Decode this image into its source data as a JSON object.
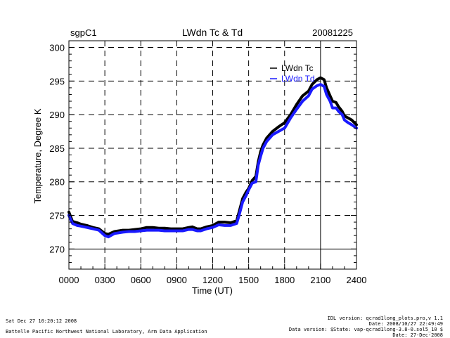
{
  "chart_data": {
    "type": "line",
    "title": "LWdn Tc & Td",
    "site": "sgpC1",
    "date": "20081225",
    "xlabel": "Time (UT)",
    "ylabel": "Temperature, Degree K",
    "xlim": [
      0,
      24
    ],
    "ylim": [
      267,
      301
    ],
    "xticks": [
      0,
      3,
      6,
      9,
      12,
      15,
      18,
      21,
      24
    ],
    "xtick_labels": [
      "0000",
      "0300",
      "0600",
      "0900",
      "1200",
      "1500",
      "1800",
      "2100",
      "2400"
    ],
    "yticks": [
      270,
      275,
      280,
      285,
      290,
      295,
      300
    ],
    "ytick_labels": [
      "270",
      "275",
      "280",
      "285",
      "290",
      "295",
      "300"
    ],
    "grid": true,
    "legend_position": "top-right",
    "series": [
      {
        "name": "LWdn Tc",
        "color": "#000000",
        "x": [
          0,
          0.3,
          0.7,
          1,
          1.5,
          2,
          2.5,
          3,
          3.3,
          3.8,
          4.5,
          5,
          5.5,
          6,
          6.5,
          7,
          7.5,
          8,
          8.5,
          9,
          9.5,
          10,
          10.3,
          10.7,
          11,
          11.5,
          12,
          12.5,
          13,
          13.5,
          14,
          14.2,
          14.5,
          14.8,
          15,
          15.3,
          15.6,
          15.8,
          16,
          16.2,
          16.5,
          17,
          17.5,
          18,
          18.5,
          19,
          19.5,
          20,
          20.3,
          20.7,
          21,
          21.3,
          21.5,
          21.8,
          22,
          22.3,
          22.5,
          22.8,
          23,
          23.3,
          23.6,
          24
        ],
        "values": [
          275.5,
          274.1,
          273.9,
          273.7,
          273.5,
          273.2,
          273.0,
          272.3,
          272.2,
          272.6,
          272.8,
          272.8,
          272.9,
          273.0,
          273.2,
          273.2,
          273.1,
          273.1,
          273.0,
          273.0,
          273.0,
          273.2,
          273.3,
          273.0,
          273.0,
          273.3,
          273.5,
          274.0,
          274.0,
          273.9,
          274.2,
          275.5,
          277.5,
          278.5,
          279.0,
          280.2,
          280.8,
          283.0,
          284.5,
          285.5,
          286.5,
          287.5,
          288.2,
          288.8,
          290.0,
          291.5,
          292.8,
          293.5,
          294.5,
          295.2,
          295.5,
          295.2,
          294.0,
          292.8,
          292.0,
          291.8,
          291.2,
          290.5,
          289.8,
          289.5,
          289.2,
          288.5
        ]
      },
      {
        "name": "LWdn Td",
        "color": "#1a1aff",
        "x": [
          0,
          0.3,
          0.7,
          1,
          1.5,
          2,
          2.5,
          3,
          3.3,
          3.8,
          4.5,
          5,
          5.5,
          6,
          6.5,
          7,
          7.5,
          8,
          8.5,
          9,
          9.5,
          10,
          10.3,
          10.7,
          11,
          11.5,
          12,
          12.5,
          13,
          13.5,
          14,
          14.2,
          14.5,
          14.8,
          15,
          15.3,
          15.6,
          15.8,
          16,
          16.2,
          16.5,
          17,
          17.5,
          18,
          18.5,
          19,
          19.5,
          20,
          20.3,
          20.7,
          21,
          21.3,
          21.5,
          21.8,
          22,
          22.3,
          22.5,
          22.8,
          23,
          23.3,
          23.6,
          24
        ],
        "values": [
          275.0,
          273.8,
          273.5,
          273.4,
          273.2,
          273.0,
          272.8,
          272.0,
          271.8,
          272.3,
          272.5,
          272.6,
          272.6,
          272.7,
          272.8,
          272.8,
          272.8,
          272.7,
          272.7,
          272.7,
          272.7,
          272.9,
          272.9,
          272.7,
          272.7,
          273.0,
          273.2,
          273.6,
          273.5,
          273.5,
          273.8,
          275.0,
          277.0,
          278.0,
          278.8,
          279.8,
          280.0,
          282.5,
          283.8,
          285.0,
          286.0,
          287.0,
          287.5,
          288.0,
          289.5,
          290.8,
          292.0,
          292.8,
          293.8,
          294.3,
          294.5,
          294.2,
          293.0,
          292.0,
          291.0,
          291.0,
          290.5,
          290.0,
          289.2,
          288.8,
          288.5,
          288.0
        ]
      }
    ]
  },
  "footer": {
    "left_line1": "Sat Dec 27 10:20:12 2008",
    "left_line2": "Battelle Pacific Northwest National Laboratory, Arm Data Application",
    "right_line1": "IDL version: qcrad1long_plots.pro,v 1.1",
    "right_line2": "Date: 2008/10/27 22:49:49",
    "right_line3": "Data version: $State: vap-qcrad1long-3.8-0.sol5_10 $",
    "right_line4": "Date: 27-Dec-2008"
  }
}
